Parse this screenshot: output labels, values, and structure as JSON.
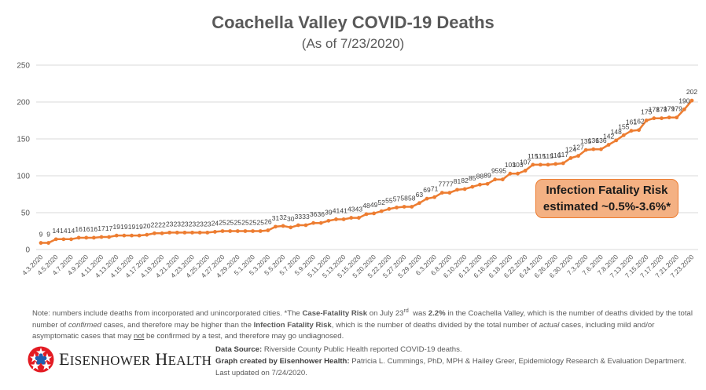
{
  "chart_data": {
    "type": "line",
    "title": "Coachella Valley COVID-19 Deaths",
    "subtitle": "(As of 7/23/2020)",
    "xlabel": "",
    "ylabel": "",
    "ylim": [
      0,
      250
    ],
    "yticks": [
      0,
      50,
      100,
      150,
      200,
      250
    ],
    "grid": true,
    "legend": "none",
    "series_color": "#ed7d31",
    "x": [
      "4.3.2020",
      "4.4.2020",
      "4.5.2020",
      "4.6.2020",
      "4.7.2020",
      "4.8.2020",
      "4.9.2020",
      "4.10.2020",
      "4.11.2020",
      "4.12.2020",
      "4.13.2020",
      "4.14.2020",
      "4.15.2020",
      "4.16.2020",
      "4.17.2020",
      "4.18.2020",
      "4.19.2020",
      "4.20.2020",
      "4.21.2020",
      "4.22.2020",
      "4.23.2020",
      "4.24.2020",
      "4.25.2020",
      "4.26.2020",
      "4.27.2020",
      "4.28.2020",
      "4.29.2020",
      "4.30.2020",
      "5.1.2020",
      "5.2.2020",
      "5.3.2020",
      "5.4.2020",
      "5.5.2020",
      "5.6.2020",
      "5.7.2020",
      "5.8.2020",
      "5.9.2020",
      "5.10.2020",
      "5.11.2020",
      "5.12.2020",
      "5.13.2020",
      "5.14.2020",
      "5.15.2020",
      "5.19.2020",
      "5.20.2020",
      "5.21.2020",
      "5.22.2020",
      "5.26.2020",
      "5.27.2020",
      "5.28.2020",
      "5.29.2020",
      "6.2.2020",
      "6.3.2020",
      "6.5.2020",
      "6.8.2020",
      "6.9.2020",
      "6.10.2020",
      "6.11.2020",
      "6.12.2020",
      "6.15.2020",
      "6.16.2020",
      "6.17.2020",
      "6.18.2020",
      "6.19.2020",
      "6.22.2020",
      "6.23.2020",
      "6.24.2020",
      "6.25.2020",
      "6.26.2020",
      "6.29.2020",
      "6.30.2020",
      "7.1.2020",
      "7.3.2020",
      "7.5.2020",
      "7.6.2020",
      "7.7.2020",
      "7.8.2020",
      "7.10.2020",
      "7.13.2020",
      "7.14.2020",
      "7.15.2020",
      "7.16.2020",
      "7.17.2020",
      "7.20.2020",
      "7.21.2020",
      "7.22.2020",
      "7.23.2020"
    ],
    "x_tick_labels_shown": [
      "4.3.2020",
      "4.5.2020",
      "4.7.2020",
      "4.9.2020",
      "4.11.2020",
      "4.13.2020",
      "4.15.2020",
      "4.17.2020",
      "4.19.2020",
      "4.21.2020",
      "4.23.2020",
      "4.25.2020",
      "4.27.2020",
      "4.29.2020",
      "5.1.2020",
      "5.3.2020",
      "5.5.2020",
      "5.7.2020",
      "5.9.2020",
      "5.11.2020",
      "5.13.2020",
      "5.15.2020",
      "5.20.2020",
      "5.22.2020",
      "5.27.2020",
      "5.29.2020",
      "6.3.2020",
      "6.8.2020",
      "6.10.2020",
      "6.12.2020",
      "6.16.2020",
      "6.18.2020",
      "6.22.2020",
      "6.24.2020",
      "6.26.2020",
      "6.30.2020",
      "7.3.2020",
      "7.6.2020",
      "7.8.2020",
      "7.13.2020",
      "7.15.2020",
      "7.17.2020",
      "7.21.2020",
      "7.23.2020"
    ],
    "series": [
      {
        "name": "Deaths",
        "values": [
          9,
          9,
          14,
          14,
          14,
          16,
          16,
          16,
          17,
          17,
          19,
          19,
          19,
          19,
          20,
          22,
          22,
          23,
          23,
          23,
          23,
          23,
          23,
          24,
          25,
          25,
          25,
          25,
          25,
          25,
          26,
          31,
          32,
          30,
          33,
          33,
          36,
          36,
          39,
          41,
          41,
          43,
          43,
          48,
          49,
          52,
          55,
          57,
          58,
          58,
          63,
          69,
          71,
          77,
          77,
          81,
          82,
          85,
          88,
          89,
          95,
          95,
          103,
          103,
          107,
          115,
          115,
          115,
          116,
          117,
          124,
          127,
          135,
          136,
          136,
          142,
          148,
          155,
          161,
          162,
          175,
          178,
          178,
          179,
          179,
          190,
          202
        ]
      }
    ],
    "annotations": [
      "Infection Fatality Risk estimated ~0.5%-3.6%*"
    ]
  },
  "callout": {
    "line1": "Infection Fatality Risk",
    "line2": "estimated ~0.5%-3.6%*"
  },
  "note": {
    "p1": "Note: numbers include deaths from incorporated and unincorporated cities. *The ",
    "b1": "Case-Fatality Risk",
    "p2": " on July 23",
    "sup": "rd",
    "p3": "  was ",
    "b2": "2.2%",
    "p4": " in the Coachella Valley, which is the number of deaths divided by the total number of ",
    "i1": "confirmed",
    "p5": " cases, and therefore may be higher than the ",
    "b3": "Infection Fatality Risk",
    "p6": ", which is the number of deaths divided by the total number of ",
    "i2": "actual",
    "p7": " cases, including mild and/or asymptomatic cases that may ",
    "u1": "not",
    "p8": " be confirmed by a test, and therefore may go undiagnosed."
  },
  "logo": {
    "name_big1": "E",
    "name_small1": "ISENHOWER",
    "name_big2": "H",
    "name_small2": "EALTH"
  },
  "credits": {
    "source_label": "Data Source:",
    "source_text": " Riverside County Public Health reported COVID-19 deaths.",
    "graph_label": "Graph created by Eisenhower Health:",
    "graph_text": " Patricia L. Cummings, PhD, MPH & Hailey Greer, Epidemiology Research & Evaluation Department. Last updated on 7/24/2020."
  }
}
